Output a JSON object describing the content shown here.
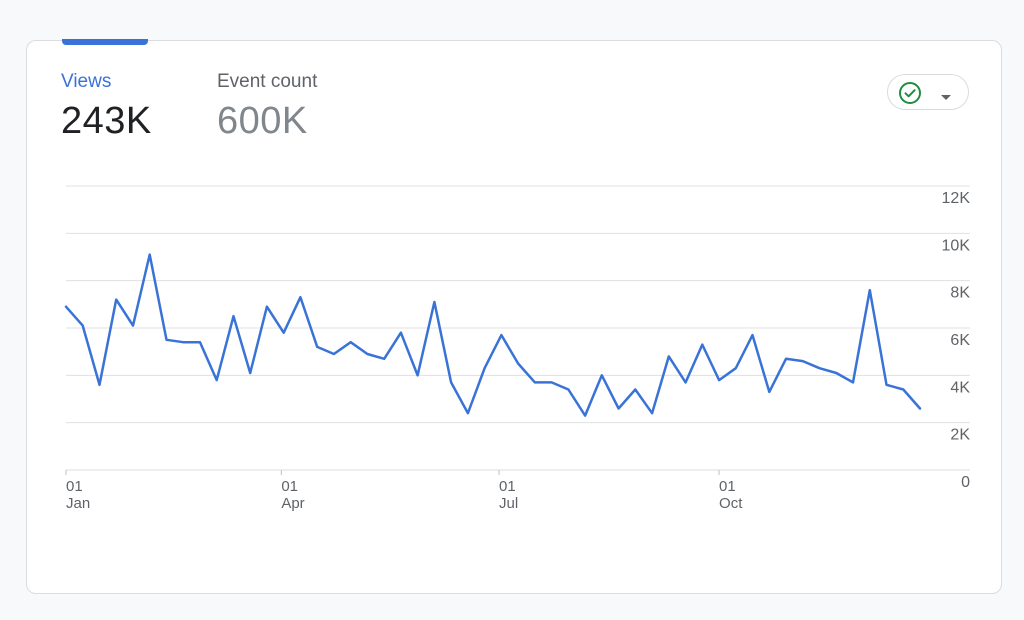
{
  "metrics": {
    "views": {
      "label": "Views",
      "value": "243K"
    },
    "events": {
      "label": "Event count",
      "value": "600K"
    }
  },
  "compare_button": {
    "icon": "check-circle-icon",
    "dropdown_icon": "caret-down-icon"
  },
  "colors": {
    "accent": "#3a73d7",
    "check": "#1e8e3e",
    "grid": "#e0e0e0",
    "axis_text": "#5f6368"
  },
  "chart_data": {
    "type": "line",
    "title": "",
    "xlabel": "",
    "ylabel": "",
    "ylim": [
      0,
      12000
    ],
    "y_ticks": [
      "12K",
      "10K",
      "8K",
      "6K",
      "4K",
      "2K",
      "0"
    ],
    "y_tick_values": [
      12000,
      10000,
      8000,
      6000,
      4000,
      2000,
      0
    ],
    "x_ticks": [
      {
        "day": "01",
        "month": "Jan",
        "week": 0
      },
      {
        "day": "01",
        "month": "Apr",
        "week": 12.86
      },
      {
        "day": "01",
        "month": "Jul",
        "week": 25.86
      },
      {
        "day": "01",
        "month": "Oct",
        "week": 39
      }
    ],
    "y_axis_position": "right",
    "grid": true,
    "series": [
      {
        "name": "",
        "color": "#3a73d7",
        "values": [
          6900,
          6100,
          3600,
          7200,
          6100,
          9100,
          5500,
          5400,
          5400,
          3800,
          6500,
          4100,
          6900,
          5800,
          7300,
          5200,
          4900,
          5400,
          4900,
          4700,
          5800,
          4000,
          7100,
          3700,
          2400,
          4300,
          5700,
          4500,
          3700,
          3700,
          3400,
          2300,
          4000,
          2600,
          3400,
          2400,
          4800,
          3700,
          5300,
          3800,
          4300,
          5700,
          3300,
          4700,
          4600,
          4300,
          4100,
          3700,
          7600,
          3600,
          3400,
          2600
        ]
      }
    ]
  }
}
